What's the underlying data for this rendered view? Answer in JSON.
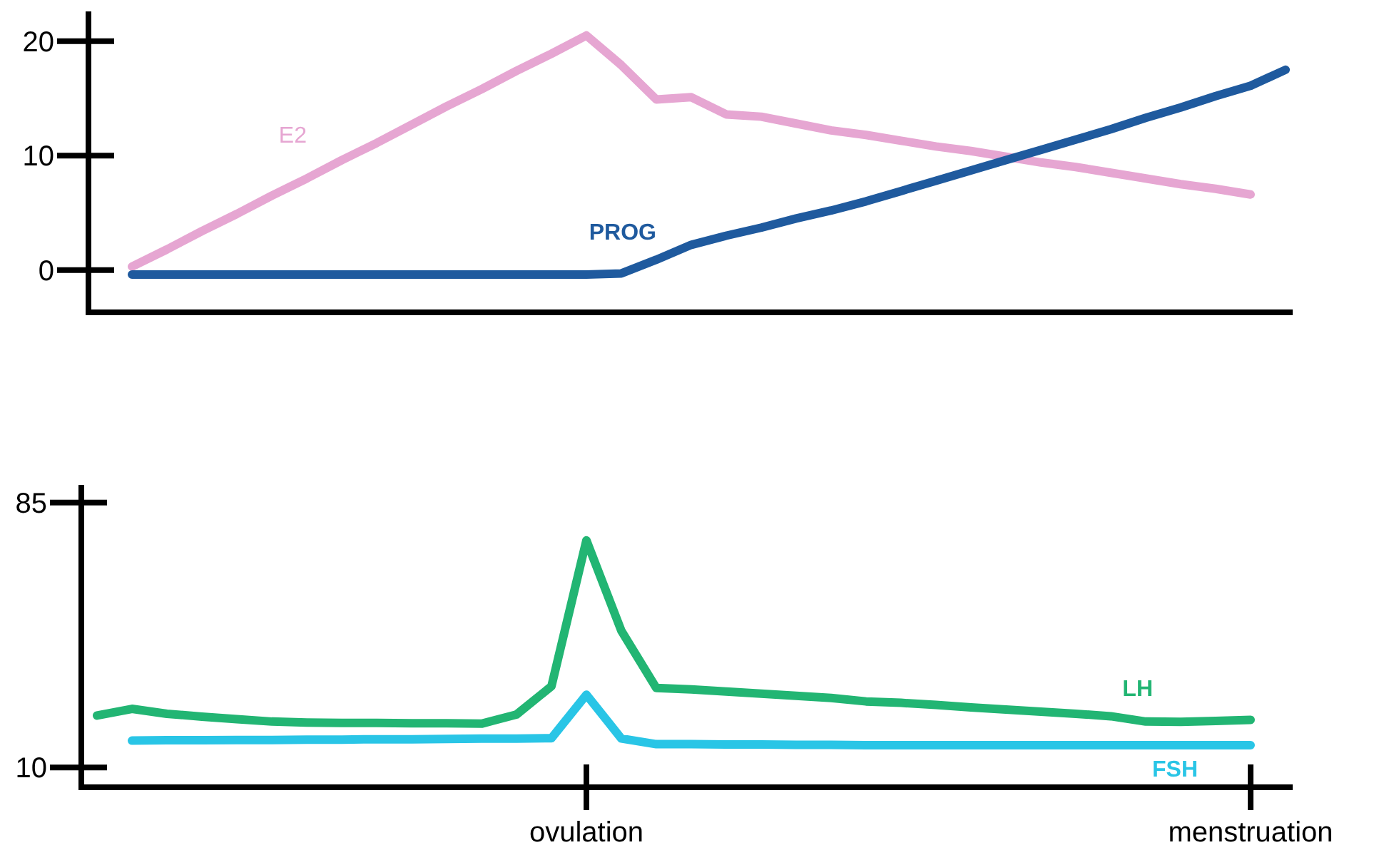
{
  "chart_data": [
    {
      "type": "line",
      "categories": [
        null,
        null,
        null,
        null,
        null,
        null,
        null,
        null,
        null,
        null,
        null,
        null,
        null,
        null,
        null,
        null,
        null,
        null,
        null,
        null,
        null,
        null,
        null,
        null,
        null,
        null,
        null,
        null,
        null,
        null,
        null,
        null,
        null,
        null,
        null
      ],
      "ylim": [
        -3.7,
        22.6
      ],
      "yticks": [
        0,
        10,
        20
      ],
      "grid": false,
      "marker": "none",
      "series": [
        {
          "name": "E2",
          "color": "#e6a6d2",
          "values": [
            null,
            0.3,
            1.8,
            3.4,
            4.9,
            6.5,
            8.0,
            9.6,
            11.1,
            12.7,
            14.3,
            15.8,
            17.4,
            18.9,
            20.5,
            17.9,
            14.9,
            15.1,
            13.6,
            13.4,
            12.8,
            12.2,
            11.8,
            11.3,
            10.8,
            10.4,
            9.9,
            9.4,
            9.0,
            8.5,
            8.0,
            7.5,
            7.1,
            6.6,
            null
          ]
        },
        {
          "name": "PROG",
          "color": "#1f5a9e",
          "values": [
            null,
            -0.4,
            -0.4,
            -0.4,
            -0.4,
            -0.4,
            -0.4,
            -0.4,
            -0.4,
            -0.4,
            -0.4,
            -0.4,
            -0.4,
            -0.4,
            -0.4,
            -0.3,
            0.9,
            2.2,
            3.0,
            3.7,
            4.5,
            5.2,
            6.0,
            6.9,
            7.8,
            8.7,
            9.6,
            10.5,
            11.4,
            12.3,
            13.3,
            14.2,
            15.2,
            16.1,
            17.5
          ]
        }
      ]
    },
    {
      "type": "line",
      "categories": [
        null,
        null,
        null,
        null,
        null,
        null,
        null,
        null,
        null,
        null,
        null,
        null,
        null,
        null,
        "ovulation",
        null,
        null,
        null,
        null,
        null,
        null,
        null,
        null,
        null,
        null,
        null,
        null,
        null,
        null,
        null,
        null,
        null,
        null,
        "menstruation",
        null
      ],
      "ylim": [
        4.4,
        90
      ],
      "yticks": [
        10,
        85
      ],
      "grid": false,
      "marker": "none",
      "series": [
        {
          "name": "LH",
          "color": "#22b573",
          "values": [
            24.7,
            26.6,
            25.2,
            24.4,
            23.7,
            23.0,
            22.7,
            22.6,
            22.6,
            22.5,
            22.5,
            22.4,
            25,
            33,
            74.3,
            48.7,
            32.5,
            32.1,
            31.5,
            30.9,
            30.3,
            29.7,
            28.7,
            28.3,
            27.7,
            27.0,
            26.4,
            25.8,
            25.2,
            24.5,
            23.0,
            22.9,
            23.2,
            23.5,
            null
          ]
        },
        {
          "name": "FSH",
          "color": "#29c5e6",
          "values": [
            null,
            17.6,
            17.7,
            17.7,
            17.8,
            17.8,
            17.9,
            17.9,
            18.0,
            18.0,
            18.1,
            18.2,
            18.2,
            18.3,
            30.6,
            18.2,
            16.6,
            16.6,
            16.5,
            16.5,
            16.4,
            16.4,
            16.3,
            16.3,
            16.3,
            16.3,
            16.3,
            16.3,
            16.3,
            16.3,
            16.3,
            16.3,
            16.3,
            16.3,
            null
          ]
        }
      ]
    }
  ]
}
